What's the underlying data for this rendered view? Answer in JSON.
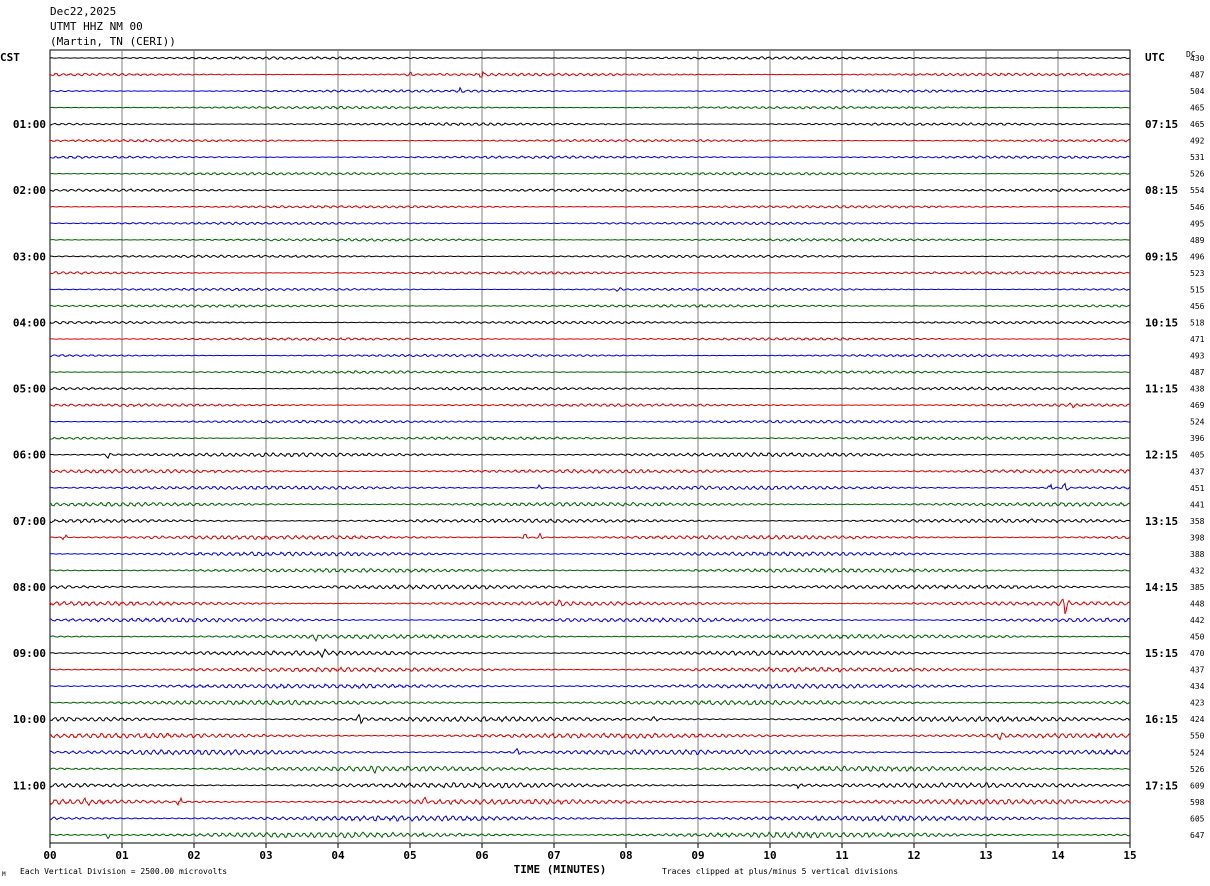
{
  "header": {
    "date": "Dec22,2025",
    "station": "UTMT HHZ NM 00",
    "location": "(Martin, TN (CERI))"
  },
  "footer": {
    "division_note": "Each Vertical Division = 2500.00 microvolts",
    "clip_note": "Traces clipped at plus/minus 5 vertical divisions",
    "corner_mark": "M"
  },
  "chart_data": {
    "type": "line",
    "title": "",
    "xlabel": "TIME (MINUTES)",
    "left_axis_label": "CST",
    "right_axis_label": "UTC",
    "dc_label": "DC",
    "xlim": [
      0,
      15
    ],
    "x_ticks": [
      "00",
      "01",
      "02",
      "03",
      "04",
      "05",
      "06",
      "07",
      "08",
      "09",
      "10",
      "11",
      "12",
      "13",
      "14",
      "15"
    ],
    "grid": "vertical lines every minute",
    "trace_colors": [
      "#000000",
      "#d40000",
      "#0000d4",
      "#006000"
    ],
    "left_hour_labels": [
      "01:00",
      "02:00",
      "03:00",
      "04:00",
      "05:00",
      "06:00",
      "07:00",
      "08:00",
      "09:00",
      "10:00",
      "11:00"
    ],
    "right_hour_labels": [
      "07:15",
      "08:15",
      "09:15",
      "10:15",
      "11:15",
      "12:15",
      "13:15",
      "14:15",
      "15:15",
      "16:15",
      "17:15"
    ],
    "dc_offsets": [
      430,
      487,
      504,
      465,
      465,
      492,
      531,
      526,
      554,
      546,
      495,
      489,
      496,
      523,
      515,
      456,
      518,
      471,
      493,
      487,
      438,
      469,
      524,
      396,
      405,
      437,
      451,
      441,
      358,
      398,
      388,
      432,
      385,
      448,
      442,
      450,
      470,
      437,
      434,
      423,
      424,
      550,
      524,
      526,
      609,
      598,
      605,
      647
    ],
    "trace_amplitude_divisions": [
      1.0,
      1.1,
      1.0,
      1.0,
      1.0,
      1.0,
      1.0,
      1.0,
      1.0,
      1.0,
      1.0,
      1.0,
      1.0,
      1.0,
      1.0,
      1.0,
      1.0,
      1.0,
      1.0,
      1.0,
      1.1,
      1.1,
      1.1,
      1.1,
      1.6,
      1.5,
      1.5,
      1.5,
      1.5,
      1.6,
      1.6,
      1.6,
      1.6,
      1.6,
      1.6,
      1.6,
      1.8,
      1.8,
      1.8,
      1.8,
      2.0,
      2.0,
      2.0,
      2.0,
      2.0,
      2.1,
      2.1,
      2.2
    ],
    "events": [
      {
        "trace": 1,
        "minute": 5.0,
        "amp": 2.5
      },
      {
        "trace": 1,
        "minute": 6.0,
        "amp": 2.5
      },
      {
        "trace": 2,
        "minute": 5.7,
        "amp": 2
      },
      {
        "trace": 14,
        "minute": 7.9,
        "amp": 2
      },
      {
        "trace": 21,
        "minute": 14.2,
        "amp": 2.5
      },
      {
        "trace": 24,
        "minute": 0.8,
        "amp": 3
      },
      {
        "trace": 26,
        "minute": 6.8,
        "amp": 3
      },
      {
        "trace": 26,
        "minute": 13.9,
        "amp": 4
      },
      {
        "trace": 26,
        "minute": 14.1,
        "amp": 5
      },
      {
        "trace": 29,
        "minute": 0.2,
        "amp": 4
      },
      {
        "trace": 29,
        "minute": 6.6,
        "amp": 4
      },
      {
        "trace": 29,
        "minute": 6.8,
        "amp": 4
      },
      {
        "trace": 33,
        "minute": 7.1,
        "amp": 4
      },
      {
        "trace": 33,
        "minute": 14.1,
        "amp": 10
      },
      {
        "trace": 35,
        "minute": 3.7,
        "amp": 3
      },
      {
        "trace": 36,
        "minute": 3.8,
        "amp": 3
      },
      {
        "trace": 40,
        "minute": 4.3,
        "amp": 4
      },
      {
        "trace": 40,
        "minute": 8.4,
        "amp": 3
      },
      {
        "trace": 41,
        "minute": 13.2,
        "amp": 3
      },
      {
        "trace": 42,
        "minute": 6.5,
        "amp": 4
      },
      {
        "trace": 43,
        "minute": 4.5,
        "amp": 3
      },
      {
        "trace": 44,
        "minute": 10.4,
        "amp": 3
      },
      {
        "trace": 45,
        "minute": 0.5,
        "amp": 5
      },
      {
        "trace": 45,
        "minute": 1.8,
        "amp": 4
      },
      {
        "trace": 45,
        "minute": 5.2,
        "amp": 3
      },
      {
        "trace": 47,
        "minute": 0.8,
        "amp": 3
      }
    ]
  }
}
